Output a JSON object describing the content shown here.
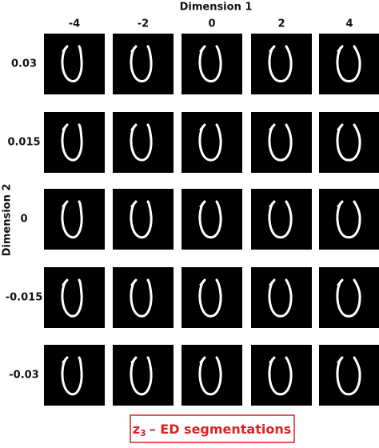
{
  "x_axis": {
    "title": "Dimension 1",
    "labels": [
      "-4",
      "-2",
      "0",
      "2",
      "4"
    ]
  },
  "y_axis": {
    "title": "Dimension 2",
    "labels": [
      "0.03",
      "0.015",
      "0",
      "-0.015",
      "-0.03"
    ]
  },
  "caption": {
    "symbol": "z",
    "subscript": "3",
    "text": "– ED segmentations"
  }
}
